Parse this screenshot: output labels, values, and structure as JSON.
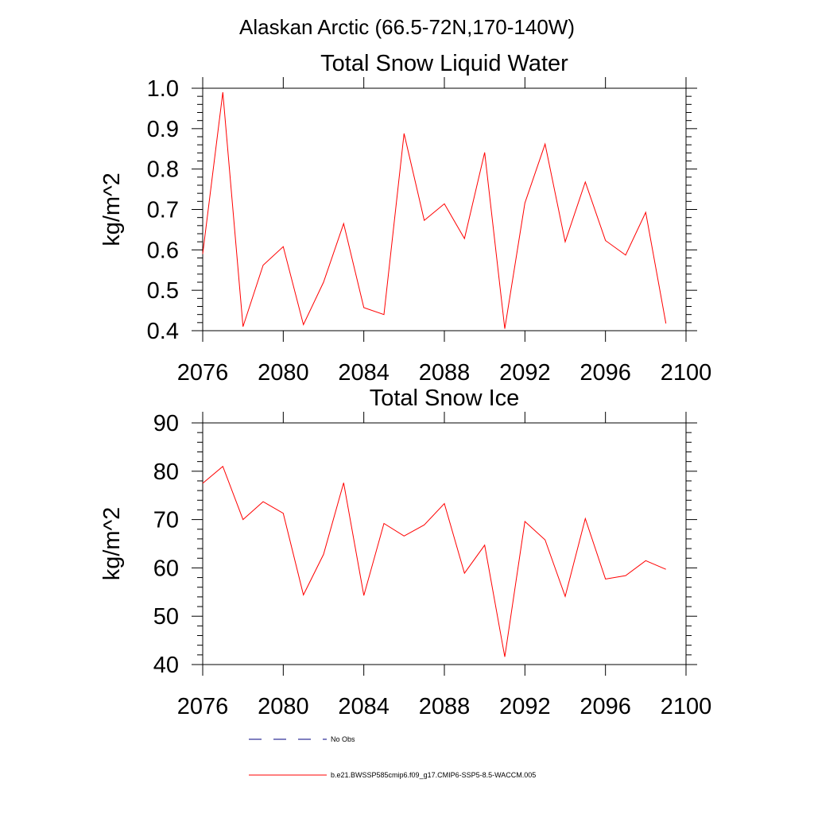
{
  "page": {
    "title": "Alaskan Arctic (66.5-72N,170-140W)"
  },
  "chart_data": [
    {
      "type": "line",
      "title": "Total Snow Liquid Water",
      "xlabel": "",
      "ylabel": "kg/m^2",
      "xlim": [
        2076,
        2100
      ],
      "ylim": [
        0.4,
        1.0
      ],
      "xticks": [
        2076,
        2080,
        2084,
        2088,
        2092,
        2096,
        2100
      ],
      "xtick_labels": [
        "2076",
        "2080",
        "2084",
        "2088",
        "2092",
        "2096",
        "2100"
      ],
      "yticks": [
        0.4,
        0.5,
        0.6,
        0.7,
        0.8,
        0.9,
        1.0
      ],
      "ytick_labels": [
        "0.4",
        "0.5",
        "0.6",
        "0.7",
        "0.8",
        "0.9",
        "1.0"
      ],
      "series": [
        {
          "name": "b.e21.BWSSP585cmip6.f09_g17.CMIP6-SSP5-8.5-WACCM.005",
          "color": "#ff0000",
          "x": [
            2076,
            2077,
            2078,
            2079,
            2080,
            2081,
            2082,
            2083,
            2084,
            2085,
            2086,
            2087,
            2088,
            2089,
            2090,
            2091,
            2092,
            2093,
            2094,
            2095,
            2096,
            2097,
            2098,
            2099
          ],
          "values": [
            0.59,
            0.99,
            0.41,
            0.562,
            0.608,
            0.415,
            0.52,
            0.665,
            0.457,
            0.44,
            0.888,
            0.673,
            0.714,
            0.628,
            0.841,
            0.405,
            0.716,
            0.862,
            0.62,
            0.768,
            0.623,
            0.587,
            0.693,
            0.418
          ]
        }
      ]
    },
    {
      "type": "line",
      "title": "Total Snow Ice",
      "xlabel": "",
      "ylabel": "kg/m^2",
      "xlim": [
        2076,
        2100
      ],
      "ylim": [
        40,
        90
      ],
      "xticks": [
        2076,
        2080,
        2084,
        2088,
        2092,
        2096,
        2100
      ],
      "xtick_labels": [
        "2076",
        "2080",
        "2084",
        "2088",
        "2092",
        "2096",
        "2100"
      ],
      "yticks": [
        40,
        50,
        60,
        70,
        80,
        90
      ],
      "ytick_labels": [
        "40",
        "50",
        "60",
        "70",
        "80",
        "90"
      ],
      "series": [
        {
          "name": "b.e21.BWSSP585cmip6.f09_g17.CMIP6-SSP5-8.5-WACCM.005",
          "color": "#ff0000",
          "x": [
            2076,
            2077,
            2078,
            2079,
            2080,
            2081,
            2082,
            2083,
            2084,
            2085,
            2086,
            2087,
            2088,
            2089,
            2090,
            2091,
            2092,
            2093,
            2094,
            2095,
            2096,
            2097,
            2098,
            2099
          ],
          "values": [
            77.5,
            81.0,
            70.0,
            73.7,
            71.3,
            54.4,
            62.8,
            77.6,
            54.3,
            69.2,
            66.6,
            68.9,
            73.3,
            58.9,
            64.7,
            41.6,
            69.6,
            65.8,
            54.1,
            70.2,
            57.7,
            58.4,
            61.5,
            59.7
          ]
        }
      ]
    }
  ],
  "legend": {
    "placement": "bottom",
    "items": [
      {
        "label": "No Obs",
        "color": "#000080",
        "dash": "dashed"
      },
      {
        "label": "b.e21.BWSSP585cmip6.f09_g17.CMIP6-SSP5-8.5-WACCM.005",
        "color": "#ff0000",
        "dash": "solid"
      }
    ]
  }
}
